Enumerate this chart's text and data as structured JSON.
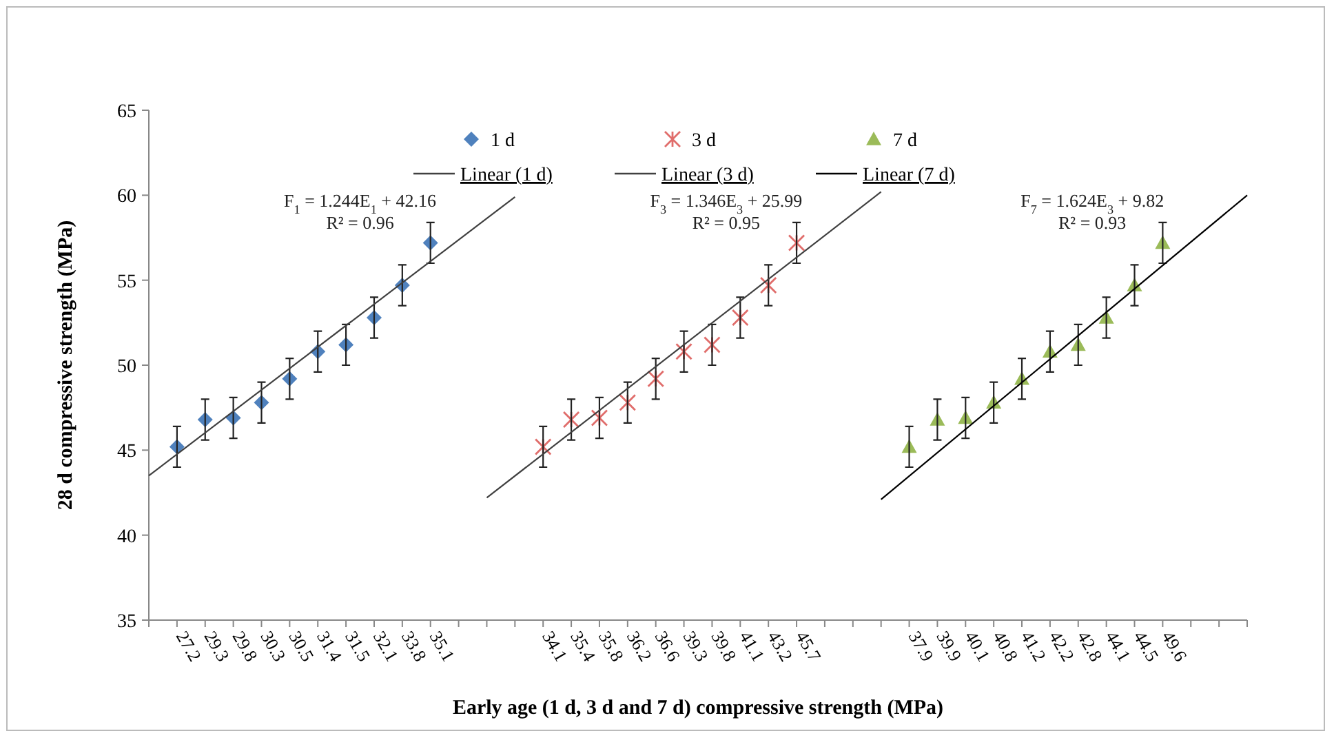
{
  "chart_data": {
    "type": "scatter",
    "xlabel": "Early age (1 d, 3 d and 7 d) compressive strength (MPa)",
    "ylabel": "28 d compressive strength (MPa)",
    "categories": [
      null,
      "27.2",
      "29.3",
      "29.8",
      "30.3",
      "30.5",
      "31.4",
      "31.5",
      "32.1",
      "33.8",
      "35.1",
      null,
      null,
      null,
      "34.1",
      "35.4",
      "35.8",
      "36.2",
      "36.6",
      "39.3",
      "39.8",
      "41.1",
      "43.2",
      "45.7",
      null,
      null,
      null,
      "37.9",
      "39.9",
      "40.1",
      "40.8",
      "41.2",
      "42.2",
      "42.8",
      "44.1",
      "44.5",
      "49.6",
      null,
      null,
      null
    ],
    "ylim": [
      35,
      65
    ],
    "yticks": [
      35,
      40,
      45,
      50,
      55,
      60,
      65
    ],
    "legend": "top",
    "grid": false,
    "series": [
      {
        "name": "1 d",
        "color": "#4f81bd",
        "marker": "diamond",
        "values": [
          null,
          45.2,
          46.8,
          46.9,
          47.8,
          49.2,
          50.8,
          51.2,
          52.8,
          54.7,
          57.2,
          null,
          null,
          null,
          null,
          null,
          null,
          null,
          null,
          null,
          null,
          null,
          null,
          null,
          null,
          null,
          null,
          null,
          null,
          null,
          null,
          null,
          null,
          null,
          null,
          null,
          null,
          null,
          null,
          null
        ],
        "errors": [
          null,
          1.2,
          1.2,
          1.2,
          1.2,
          1.2,
          1.2,
          1.2,
          1.2,
          1.2,
          1.2,
          null,
          null,
          null,
          null,
          null,
          null,
          null,
          null,
          null,
          null,
          null,
          null,
          null,
          null,
          null,
          null,
          null,
          null,
          null,
          null,
          null,
          null,
          null,
          null,
          null,
          null,
          null,
          null,
          null
        ]
      },
      {
        "name": "3 d",
        "color": "#e06d6b",
        "marker": "cross",
        "values": [
          null,
          null,
          null,
          null,
          null,
          null,
          null,
          null,
          null,
          null,
          null,
          null,
          null,
          null,
          45.2,
          46.8,
          46.9,
          47.8,
          49.2,
          50.8,
          51.2,
          52.8,
          54.7,
          57.2,
          null,
          null,
          null,
          null,
          null,
          null,
          null,
          null,
          null,
          null,
          null,
          null,
          null,
          null,
          null,
          null
        ],
        "errors": [
          null,
          null,
          null,
          null,
          null,
          null,
          null,
          null,
          null,
          null,
          null,
          null,
          null,
          null,
          1.2,
          1.2,
          1.2,
          1.2,
          1.2,
          1.2,
          1.2,
          1.2,
          1.2,
          1.2,
          null,
          null,
          null,
          null,
          null,
          null,
          null,
          null,
          null,
          null,
          null,
          null,
          null,
          null,
          null,
          null
        ]
      },
      {
        "name": "7 d",
        "color": "#9bbb59",
        "marker": "triangle",
        "values": [
          null,
          null,
          null,
          null,
          null,
          null,
          null,
          null,
          null,
          null,
          null,
          null,
          null,
          null,
          null,
          null,
          null,
          null,
          null,
          null,
          null,
          null,
          null,
          null,
          null,
          null,
          null,
          45.2,
          46.8,
          46.9,
          47.8,
          49.2,
          50.8,
          51.2,
          52.8,
          54.7,
          57.2,
          null,
          null,
          null
        ],
        "errors": [
          null,
          null,
          null,
          null,
          null,
          null,
          null,
          null,
          null,
          null,
          null,
          null,
          null,
          null,
          null,
          null,
          null,
          null,
          null,
          null,
          null,
          null,
          null,
          null,
          null,
          null,
          null,
          1.2,
          1.2,
          1.2,
          1.2,
          1.2,
          1.2,
          1.2,
          1.2,
          1.2,
          1.2,
          null,
          null,
          null
        ]
      },
      {
        "name": "Linear (1 d)",
        "type": "line",
        "color": "#404040",
        "values": [
          43.5,
          null,
          null,
          null,
          null,
          null,
          null,
          null,
          null,
          null,
          null,
          null,
          null,
          59.9,
          null,
          null,
          null,
          null,
          null,
          null,
          null,
          null,
          null,
          null,
          null,
          null,
          null,
          null,
          null,
          null,
          null,
          null,
          null,
          null,
          null,
          null,
          null,
          null,
          null,
          null
        ]
      },
      {
        "name": "Linear (3 d)",
        "type": "line",
        "color": "#404040",
        "values": [
          null,
          null,
          null,
          null,
          null,
          null,
          null,
          null,
          null,
          null,
          null,
          null,
          42.2,
          null,
          null,
          null,
          null,
          null,
          null,
          null,
          null,
          null,
          null,
          null,
          null,
          null,
          60.2,
          null,
          null,
          null,
          null,
          null,
          null,
          null,
          null,
          null,
          null,
          null,
          null,
          null
        ]
      },
      {
        "name": "Linear (7 d)",
        "type": "line",
        "color": "#000000",
        "values": [
          null,
          null,
          null,
          null,
          null,
          null,
          null,
          null,
          null,
          null,
          null,
          null,
          null,
          null,
          null,
          null,
          null,
          null,
          null,
          null,
          null,
          null,
          null,
          null,
          null,
          null,
          42.1,
          null,
          null,
          null,
          null,
          null,
          null,
          null,
          null,
          null,
          null,
          null,
          null,
          60.0
        ]
      }
    ],
    "annotations": [
      "F$_{1}$ = 1.244E$_{1}$ + 42.16",
      "R² = 0.96",
      "F$_{3}$ = 1.346E$_{3}$ + 25.99",
      "R² = 0.95",
      "F$_{7}$ = 1.624E$_{3}$ + 9.82",
      "R² = 0.93"
    ]
  }
}
